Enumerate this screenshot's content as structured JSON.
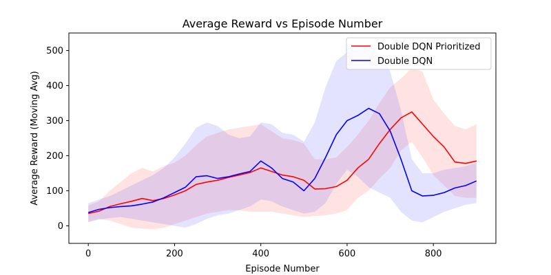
{
  "chart_data": {
    "type": "line",
    "title": "Average Reward vs Episode Number",
    "xlabel": "Episode Number",
    "ylabel": "Average Reward (Moving Avg)",
    "xlim": [
      -45,
      945
    ],
    "ylim": [
      -50,
      550
    ],
    "xticks": [
      0,
      200,
      400,
      600,
      800
    ],
    "yticks": [
      0,
      100,
      200,
      300,
      400,
      500
    ],
    "grid": false,
    "legend_position": "top-right",
    "x": [
      0,
      25,
      50,
      75,
      100,
      125,
      150,
      175,
      200,
      225,
      250,
      275,
      300,
      325,
      350,
      375,
      400,
      425,
      450,
      475,
      500,
      525,
      550,
      575,
      600,
      625,
      650,
      675,
      700,
      725,
      750,
      775,
      800,
      825,
      850,
      875,
      900
    ],
    "series": [
      {
        "name": "Double DQN Prioritized",
        "color": "#ff0000",
        "band_color": "#ff0000",
        "values": [
          35,
          42,
          55,
          63,
          70,
          78,
          72,
          78,
          88,
          100,
          118,
          125,
          130,
          138,
          145,
          152,
          165,
          155,
          145,
          140,
          130,
          105,
          106,
          112,
          130,
          165,
          190,
          235,
          275,
          308,
          325,
          290,
          255,
          225,
          182,
          178,
          185
        ],
        "lower": [
          12,
          20,
          15,
          5,
          -5,
          -8,
          -10,
          -5,
          5,
          15,
          25,
          35,
          40,
          45,
          45,
          40,
          40,
          40,
          35,
          30,
          25,
          28,
          30,
          35,
          45,
          80,
          100,
          135,
          165,
          215,
          240,
          195,
          145,
          115,
          85,
          80,
          80
        ],
        "upper": [
          58,
          70,
          100,
          125,
          150,
          165,
          155,
          170,
          180,
          200,
          230,
          255,
          265,
          275,
          280,
          285,
          290,
          270,
          250,
          245,
          235,
          190,
          190,
          195,
          225,
          260,
          300,
          350,
          395,
          420,
          450,
          440,
          360,
          320,
          285,
          275,
          290
        ]
      },
      {
        "name": "Double DQN",
        "color": "#0000ff",
        "band_color": "#0000ff",
        "values": [
          38,
          47,
          52,
          55,
          57,
          62,
          68,
          80,
          95,
          110,
          140,
          143,
          135,
          140,
          148,
          155,
          185,
          165,
          135,
          125,
          100,
          135,
          195,
          260,
          300,
          315,
          335,
          320,
          270,
          190,
          100,
          85,
          87,
          95,
          108,
          115,
          128
        ],
        "lower": [
          10,
          18,
          22,
          25,
          20,
          15,
          10,
          5,
          0,
          -5,
          5,
          20,
          30,
          35,
          45,
          55,
          75,
          70,
          55,
          45,
          35,
          40,
          65,
          120,
          160,
          140,
          110,
          95,
          80,
          40,
          15,
          10,
          25,
          40,
          50,
          60,
          65
        ],
        "upper": [
          65,
          75,
          85,
          100,
          115,
          130,
          145,
          165,
          195,
          235,
          280,
          295,
          285,
          260,
          250,
          255,
          295,
          290,
          265,
          260,
          240,
          295,
          395,
          470,
          495,
          500,
          520,
          490,
          440,
          330,
          190,
          150,
          150,
          160,
          165,
          170,
          180
        ]
      }
    ]
  }
}
